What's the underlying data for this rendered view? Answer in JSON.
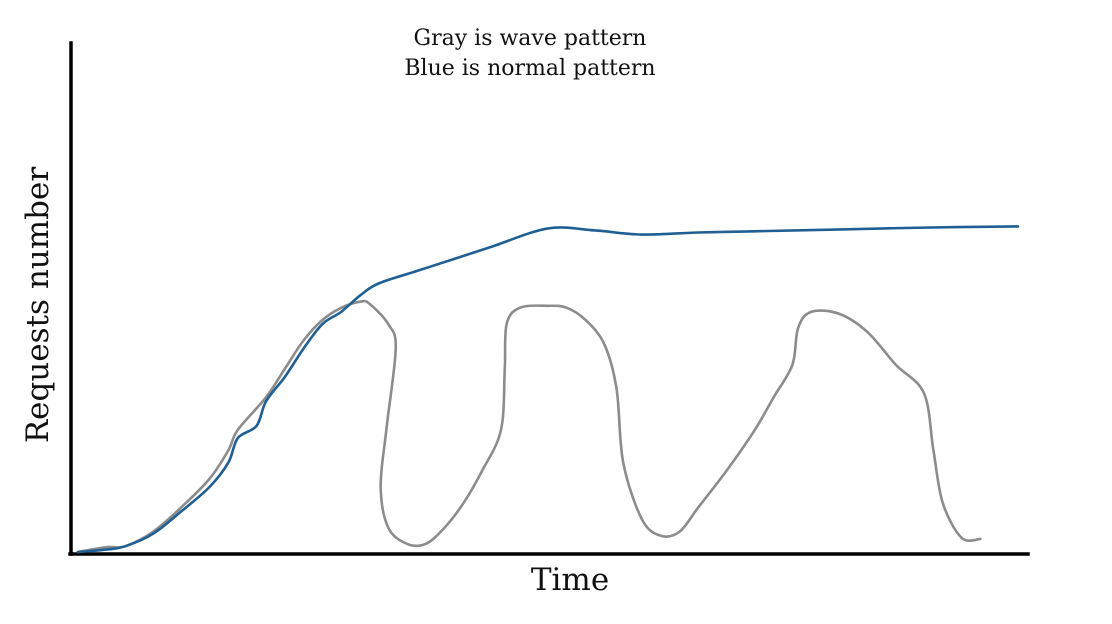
{
  "chart_data": {
    "type": "line",
    "xlabel": "Time",
    "ylabel": "Requests number",
    "annotations": [
      "Gray is wave pattern",
      "Blue is normal pattern"
    ],
    "xlim": [
      0,
      100
    ],
    "ylim": [
      0,
      100
    ],
    "grid": false,
    "legend": "none",
    "series": [
      {
        "color": "#1f5f94",
        "points": [
          [
            0,
            0
          ],
          [
            3,
            0.6
          ],
          [
            5,
            1.4
          ],
          [
            8,
            4.5
          ],
          [
            11,
            10
          ],
          [
            14,
            16
          ],
          [
            16,
            22
          ],
          [
            17,
            28
          ],
          [
            19,
            31
          ],
          [
            20,
            37
          ],
          [
            22,
            43
          ],
          [
            24,
            50
          ],
          [
            26,
            56
          ],
          [
            28,
            59
          ],
          [
            30,
            63
          ],
          [
            32,
            66
          ],
          [
            36,
            69
          ],
          [
            40,
            72
          ],
          [
            44,
            75
          ],
          [
            50,
            79.5
          ],
          [
            55,
            79
          ],
          [
            60,
            78
          ],
          [
            66,
            78.5
          ],
          [
            72,
            78.8
          ],
          [
            80,
            79.2
          ],
          [
            90,
            79.7
          ],
          [
            100,
            80
          ]
        ]
      },
      {
        "color": "#8c8c8c",
        "points": [
          [
            0,
            0
          ],
          [
            3,
            1.2
          ],
          [
            5,
            1.4
          ],
          [
            8,
            5
          ],
          [
            11,
            11
          ],
          [
            14,
            18
          ],
          [
            16,
            25
          ],
          [
            17,
            30
          ],
          [
            20,
            38
          ],
          [
            22,
            45
          ],
          [
            24,
            52
          ],
          [
            26,
            57
          ],
          [
            28,
            60
          ],
          [
            30,
            61.5
          ],
          [
            31,
            61
          ],
          [
            33,
            56
          ],
          [
            33.8,
            50
          ],
          [
            32.8,
            30
          ],
          [
            32.2,
            16
          ],
          [
            33,
            6
          ],
          [
            35,
            2
          ],
          [
            37,
            2
          ],
          [
            39,
            6
          ],
          [
            41,
            12
          ],
          [
            43,
            20
          ],
          [
            45,
            30
          ],
          [
            45.4,
            45
          ],
          [
            45.6,
            56
          ],
          [
            47,
            60
          ],
          [
            50,
            60.5
          ],
          [
            52,
            60
          ],
          [
            54,
            57
          ],
          [
            56,
            51
          ],
          [
            57.3,
            40
          ],
          [
            58,
            22
          ],
          [
            60,
            8
          ],
          [
            62,
            4
          ],
          [
            64,
            5
          ],
          [
            66,
            11
          ],
          [
            69,
            20
          ],
          [
            72,
            30
          ],
          [
            74,
            38
          ],
          [
            76,
            46
          ],
          [
            76.6,
            55
          ],
          [
            78,
            59
          ],
          [
            81,
            58.5
          ],
          [
            84,
            54
          ],
          [
            87,
            46
          ],
          [
            90,
            39
          ],
          [
            91,
            25
          ],
          [
            92,
            12
          ],
          [
            94,
            3.5
          ],
          [
            96,
            3.2
          ]
        ]
      }
    ]
  }
}
